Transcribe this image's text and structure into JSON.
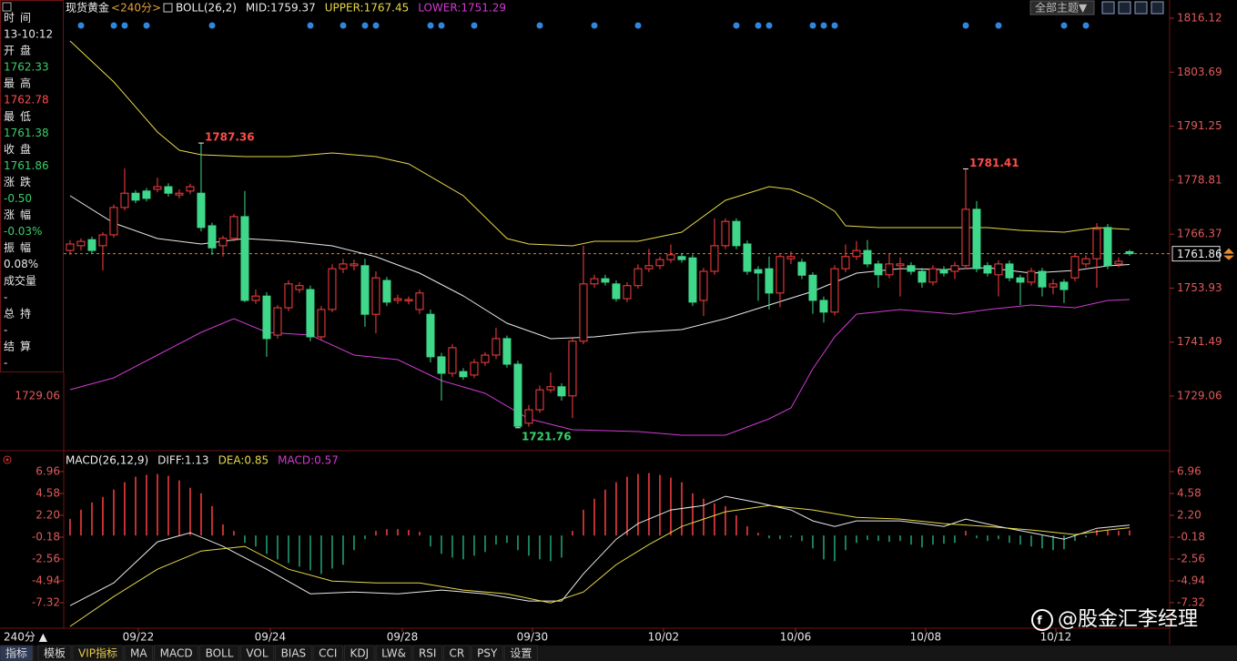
{
  "header": {
    "symbol": "现货黄金",
    "period": "<240分>",
    "theme_button": "全部主题▼"
  },
  "info_panel": [
    {
      "label": "时间",
      "value": "13-10:12",
      "color": "#e8e8e8"
    },
    {
      "label": "开盘",
      "value": "1762.33",
      "color": "#39d06a"
    },
    {
      "label": "最高",
      "value": "1762.78",
      "color": "#ff4b4b"
    },
    {
      "label": "最低",
      "value": "1761.38",
      "color": "#39d06a"
    },
    {
      "label": "收盘",
      "value": "1761.86",
      "color": "#39d06a"
    },
    {
      "label": "涨跌",
      "value": "-0.50",
      "color": "#39d06a"
    },
    {
      "label": "涨幅",
      "value": "-0.03%",
      "color": "#39d06a"
    },
    {
      "label": "振幅",
      "value": "0.08%",
      "color": "#e8e8e8"
    },
    {
      "label": "成交量",
      "value": "-",
      "color": "#e8e8e8"
    },
    {
      "label": "总持",
      "value": "-",
      "color": "#e8e8e8"
    },
    {
      "label": "结算",
      "value": "-",
      "color": "#e8e8e8"
    }
  ],
  "chart_data": [
    {
      "type": "candlestick",
      "indicator": "BOLL(26,2)",
      "up_color": "#ff4040",
      "down_color": "#3fd88a",
      "candles": [
        [
          1762.6,
          1765.0,
          1761.6,
          1764.1
        ],
        [
          1763.7,
          1765.4,
          1762.6,
          1764.7
        ],
        [
          1765.1,
          1765.8,
          1762.0,
          1762.6
        ],
        [
          1763.7,
          1766.8,
          1758.0,
          1766.2
        ],
        [
          1766.2,
          1773.2,
          1765.6,
          1772.5
        ],
        [
          1772.5,
          1781.5,
          1771.8,
          1775.8
        ],
        [
          1775.8,
          1776.5,
          1773.5,
          1774.2
        ],
        [
          1776.3,
          1777.0,
          1773.9,
          1774.6
        ],
        [
          1776.7,
          1779.4,
          1776.0,
          1777.3
        ],
        [
          1777.3,
          1778.1,
          1775.0,
          1775.8
        ],
        [
          1775.4,
          1776.7,
          1774.6,
          1775.8
        ],
        [
          1776.3,
          1778.0,
          1775.6,
          1777.3
        ],
        [
          1775.8,
          1787.36,
          1767.0,
          1767.9
        ],
        [
          1768.3,
          1769.0,
          1761.6,
          1763.2
        ],
        [
          1763.7,
          1766.0,
          1761.2,
          1765.4
        ],
        [
          1765.4,
          1771.0,
          1764.7,
          1770.4
        ],
        [
          1770.4,
          1776.3,
          1750.7,
          1751.1
        ],
        [
          1751.1,
          1753.6,
          1750.3,
          1752.1
        ],
        [
          1752.1,
          1753.0,
          1738.1,
          1742.3
        ],
        [
          1743.1,
          1750.0,
          1742.3,
          1749.4
        ],
        [
          1749.4,
          1755.7,
          1748.6,
          1754.9
        ],
        [
          1753.6,
          1755.3,
          1752.8,
          1754.5
        ],
        [
          1753.6,
          1754.5,
          1741.7,
          1742.7
        ],
        [
          1742.7,
          1749.8,
          1741.9,
          1749.0
        ],
        [
          1749.0,
          1759.4,
          1748.4,
          1758.4
        ],
        [
          1758.4,
          1760.7,
          1757.4,
          1759.5
        ],
        [
          1759.1,
          1760.5,
          1758.0,
          1759.5
        ],
        [
          1759.1,
          1760.7,
          1745.0,
          1747.9
        ],
        [
          1747.9,
          1757.8,
          1743.5,
          1756.3
        ],
        [
          1755.7,
          1756.5,
          1749.8,
          1750.7
        ],
        [
          1751.1,
          1752.4,
          1750.3,
          1751.5
        ],
        [
          1751.0,
          1752.0,
          1750.2,
          1751.3
        ],
        [
          1749.0,
          1753.6,
          1748.0,
          1752.8
        ],
        [
          1747.9,
          1749.0,
          1736.8,
          1738.1
        ],
        [
          1738.1,
          1739.0,
          1728.0,
          1734.3
        ],
        [
          1734.3,
          1741.0,
          1733.5,
          1740.2
        ],
        [
          1734.7,
          1735.5,
          1732.8,
          1733.5
        ],
        [
          1733.9,
          1737.6,
          1733.2,
          1736.8
        ],
        [
          1736.8,
          1739.2,
          1736.0,
          1738.5
        ],
        [
          1738.5,
          1744.8,
          1737.6,
          1742.3
        ],
        [
          1742.3,
          1743.0,
          1735.6,
          1736.4
        ],
        [
          1736.4,
          1737.2,
          1721.76,
          1722.1
        ],
        [
          1722.8,
          1727.0,
          1722.0,
          1725.9
        ],
        [
          1725.9,
          1731.5,
          1725.2,
          1730.5
        ],
        [
          1730.5,
          1734.5,
          1729.8,
          1731.2
        ],
        [
          1731.2,
          1732.0,
          1728.0,
          1729.1
        ],
        [
          1729.1,
          1742.4,
          1724.0,
          1741.7
        ],
        [
          1741.7,
          1763.7,
          1741.0,
          1754.9
        ],
        [
          1754.9,
          1757.0,
          1754.0,
          1756.1
        ],
        [
          1756.1,
          1757.0,
          1754.5,
          1755.3
        ],
        [
          1754.9,
          1755.7,
          1750.8,
          1751.5
        ],
        [
          1751.5,
          1755.3,
          1750.7,
          1754.5
        ],
        [
          1754.5,
          1759.4,
          1753.8,
          1758.4
        ],
        [
          1758.4,
          1763.0,
          1757.6,
          1759.1
        ],
        [
          1759.1,
          1761.2,
          1758.3,
          1760.5
        ],
        [
          1760.5,
          1764.0,
          1759.8,
          1761.6
        ],
        [
          1761.2,
          1762.0,
          1759.8,
          1760.5
        ],
        [
          1760.9,
          1761.6,
          1749.8,
          1750.7
        ],
        [
          1751.1,
          1758.6,
          1747.5,
          1757.8
        ],
        [
          1757.8,
          1770.0,
          1757.0,
          1763.7
        ],
        [
          1763.7,
          1770.0,
          1762.9,
          1769.3
        ],
        [
          1769.3,
          1770.0,
          1762.9,
          1763.7
        ],
        [
          1764.1,
          1764.9,
          1757.0,
          1757.8
        ],
        [
          1758.2,
          1759.0,
          1751.0,
          1757.4
        ],
        [
          1758.4,
          1761.2,
          1749.0,
          1752.8
        ],
        [
          1752.8,
          1762.0,
          1749.5,
          1761.2
        ],
        [
          1760.7,
          1762.4,
          1759.5,
          1761.2
        ],
        [
          1759.9,
          1760.7,
          1756.0,
          1756.9
        ],
        [
          1756.9,
          1757.6,
          1748.0,
          1751.1
        ],
        [
          1751.1,
          1752.0,
          1746.0,
          1748.4
        ],
        [
          1748.4,
          1759.2,
          1747.6,
          1758.4
        ],
        [
          1758.4,
          1764.0,
          1757.6,
          1761.2
        ],
        [
          1761.2,
          1764.8,
          1760.4,
          1762.6
        ],
        [
          1762.6,
          1765.0,
          1758.7,
          1759.5
        ],
        [
          1759.5,
          1760.3,
          1754.0,
          1757.0
        ],
        [
          1757.0,
          1762.0,
          1756.2,
          1759.5
        ],
        [
          1759.1,
          1761.0,
          1752.0,
          1759.5
        ],
        [
          1759.1,
          1759.9,
          1757.0,
          1757.8
        ],
        [
          1757.8,
          1758.6,
          1754.0,
          1755.3
        ],
        [
          1755.3,
          1759.2,
          1754.5,
          1758.4
        ],
        [
          1758.2,
          1759.0,
          1756.6,
          1757.4
        ],
        [
          1757.8,
          1760.0,
          1756.0,
          1759.1
        ],
        [
          1759.1,
          1781.41,
          1758.3,
          1772.1
        ],
        [
          1772.1,
          1774.0,
          1757.6,
          1758.4
        ],
        [
          1759.1,
          1759.9,
          1756.6,
          1757.4
        ],
        [
          1757.0,
          1760.3,
          1752.0,
          1759.5
        ],
        [
          1759.5,
          1760.3,
          1755.5,
          1756.3
        ],
        [
          1756.3,
          1757.0,
          1750.0,
          1755.3
        ],
        [
          1755.3,
          1758.6,
          1754.5,
          1757.8
        ],
        [
          1757.8,
          1758.6,
          1752.0,
          1754.2
        ],
        [
          1754.2,
          1756.0,
          1752.5,
          1754.9
        ],
        [
          1755.3,
          1756.0,
          1750.5,
          1753.6
        ],
        [
          1756.3,
          1762.0,
          1755.5,
          1761.2
        ],
        [
          1759.5,
          1761.5,
          1758.7,
          1760.7
        ],
        [
          1760.7,
          1768.9,
          1754.0,
          1767.5
        ],
        [
          1767.9,
          1768.7,
          1758.3,
          1759.1
        ],
        [
          1759.5,
          1761.0,
          1758.7,
          1760.1
        ],
        [
          1762.33,
          1762.78,
          1761.38,
          1761.86
        ]
      ],
      "series": [
        {
          "name": "MID:1759.37",
          "color": "#e8e8e8",
          "x": [
            0,
            4,
            8,
            12,
            16,
            20,
            24,
            28,
            32,
            36,
            40,
            44,
            48,
            52,
            56,
            60,
            64,
            68,
            72,
            76,
            80,
            84,
            88,
            92,
            95,
            97
          ],
          "values": [
            1775.21,
            1768.92,
            1765.35,
            1764.09,
            1765.35,
            1764.72,
            1763.67,
            1761.16,
            1757.38,
            1752.14,
            1745.84,
            1742.28,
            1742.69,
            1743.74,
            1744.37,
            1746.89,
            1750.04,
            1753.18,
            1757.38,
            1758.43,
            1758.22,
            1758.64,
            1757.38,
            1758.01,
            1759.06,
            1759.37
          ]
        },
        {
          "name": "UPPER:1767.45",
          "color": "#e6d84a",
          "x": [
            0,
            4,
            8,
            10,
            12,
            16,
            20,
            24,
            28,
            31,
            36,
            40,
            42,
            46,
            48,
            52,
            56,
            60,
            64,
            66,
            68,
            70,
            71,
            74,
            78,
            84,
            87,
            91,
            94,
            97
          ],
          "values": [
            1810.88,
            1801.44,
            1789.9,
            1785.7,
            1784.65,
            1784.24,
            1784.24,
            1785.07,
            1784.24,
            1782.56,
            1775.21,
            1765.35,
            1764.09,
            1763.67,
            1764.72,
            1764.72,
            1766.82,
            1774.16,
            1777.31,
            1776.68,
            1774.58,
            1771.65,
            1768.29,
            1767.87,
            1767.87,
            1767.87,
            1767.24,
            1766.82,
            1767.87,
            1767.45
          ]
        },
        {
          "name": "LOWER:1751.29",
          "color": "#d23ad2",
          "x": [
            0,
            4,
            8,
            12,
            15,
            18,
            22,
            26,
            30,
            34,
            38,
            42,
            46,
            52,
            56,
            60,
            64,
            66,
            68,
            70,
            72,
            76,
            81,
            84,
            88,
            92,
            95,
            97
          ],
          "values": [
            1730.53,
            1733.25,
            1738.5,
            1743.74,
            1746.89,
            1743.74,
            1743.11,
            1738.5,
            1737.45,
            1732.62,
            1729.69,
            1723.81,
            1721.3,
            1720.88,
            1720.04,
            1720.04,
            1723.81,
            1726.33,
            1735.35,
            1742.69,
            1747.94,
            1748.99,
            1747.94,
            1748.99,
            1750.04,
            1749.41,
            1751.09,
            1751.29
          ]
        }
      ],
      "xlim": [
        -0.58,
        100.67
      ],
      "ylim": [
        1716.68,
        1817.8
      ],
      "yticks": [
        1816.12,
        1803.69,
        1791.25,
        1778.81,
        1766.37,
        1753.93,
        1741.49,
        1729.06
      ],
      "annotations": [
        {
          "index": 12,
          "value": 1787.36
        },
        {
          "index": 82,
          "value": 1781.41
        },
        {
          "index": 41,
          "value": 1721.76
        }
      ],
      "current_price": 1761.86
    },
    {
      "type": "macd",
      "title": "MACD(26,12,9)",
      "histogram_name": "MACD:0.57",
      "histogram_color": "#d23ad2",
      "up_color": "#ff4040",
      "down_color": "#22a877",
      "histogram": [
        1.8,
        2.8,
        3.6,
        4.2,
        5.0,
        5.8,
        6.4,
        6.6,
        6.7,
        6.5,
        6.0,
        5.2,
        4.6,
        3.2,
        1.2,
        0.5,
        -0.8,
        -1.2,
        -2.0,
        -2.6,
        -3.0,
        -3.4,
        -3.8,
        -4.2,
        -3.6,
        -3.2,
        -1.6,
        -0.4,
        0.5,
        0.7,
        0.7,
        0.6,
        0.4,
        -1.2,
        -2.0,
        -2.4,
        -2.6,
        -2.2,
        -1.8,
        -1.0,
        -0.8,
        -1.6,
        -2.2,
        -2.6,
        -2.8,
        -2.4,
        0.5,
        2.8,
        4.0,
        5.0,
        5.8,
        6.4,
        6.7,
        6.8,
        6.6,
        6.3,
        5.8,
        4.6,
        4.0,
        3.5,
        3.2,
        2.2,
        1.0,
        0.3,
        -0.3,
        -0.4,
        -0.2,
        -0.6,
        -1.4,
        -2.6,
        -2.8,
        -1.6,
        -0.8,
        -0.5,
        -0.6,
        -0.7,
        -0.6,
        -1.0,
        -1.3,
        -1.0,
        -0.9,
        -0.8,
        0.5,
        -0.3,
        -0.6,
        -0.4,
        -0.8,
        -1.0,
        -1.2,
        -1.4,
        -1.6,
        -1.5,
        -0.6,
        -0.2,
        0.6,
        0.6,
        0.5,
        0.57
      ],
      "series": [
        {
          "name": "DIFF:1.13",
          "color": "#e8e8e8",
          "x": [
            0,
            4,
            8,
            11,
            14,
            18,
            22,
            26,
            30,
            34,
            38,
            42,
            45,
            47,
            50,
            52,
            55,
            58,
            60,
            63,
            66,
            68,
            70,
            72,
            76,
            80,
            82,
            85,
            88,
            91,
            94,
            97
          ],
          "values": [
            -7.64,
            -5.16,
            -0.69,
            0.3,
            -1.19,
            -3.67,
            -6.35,
            -6.15,
            -6.35,
            -5.95,
            -6.35,
            -7.14,
            -7.14,
            -4.17,
            -0.4,
            1.29,
            2.78,
            3.27,
            4.27,
            3.57,
            2.78,
            1.59,
            0.99,
            1.59,
            1.59,
            0.99,
            1.79,
            0.99,
            0.3,
            -0.4,
            0.79,
            1.13
          ]
        },
        {
          "name": "DEA:0.85",
          "color": "#e6d84a",
          "x": [
            0,
            4,
            8,
            12,
            16,
            20,
            24,
            28,
            32,
            36,
            40,
            44,
            47,
            50,
            53,
            56,
            60,
            64,
            68,
            72,
            76,
            80,
            84,
            88,
            92,
            95,
            97
          ],
          "values": [
            -9.9,
            -6.65,
            -3.67,
            -1.69,
            -1.19,
            -3.67,
            -4.96,
            -5.16,
            -5.16,
            -5.95,
            -6.35,
            -7.34,
            -6.15,
            -3.17,
            -0.99,
            0.99,
            2.58,
            3.27,
            2.78,
            1.98,
            1.79,
            1.29,
            0.99,
            0.6,
            0.1,
            0.6,
            0.85
          ]
        }
      ],
      "xlim": [
        -0.58,
        100.67
      ],
      "ylim": [
        -10.1,
        7.55
      ],
      "yticks": [
        6.96,
        4.58,
        {
          "value": 2.2,
          "label": "2.20"
        },
        -0.18,
        -2.56,
        -4.94,
        -7.32
      ],
      "xticks": [
        {
          "value": 6.25,
          "label": "09/22"
        },
        {
          "value": 18.33,
          "label": "09/24"
        },
        {
          "value": 30.42,
          "label": "09/28"
        },
        {
          "value": 42.33,
          "label": "09/30"
        },
        {
          "value": 54.33,
          "label": "10/02"
        },
        {
          "value": 66.42,
          "label": "10/06"
        },
        {
          "value": 78.33,
          "label": "10/08"
        },
        {
          "value": 90.25,
          "label": "10/12"
        }
      ]
    }
  ],
  "period_button": "240分 ▲",
  "tabs": [
    "指标",
    "模板",
    "VIP指标",
    "MA",
    "MACD",
    "BOLL",
    "VOL",
    "BIAS",
    "CCI",
    "KDJ",
    "LW&",
    "RSI",
    "CR",
    "PSY",
    "设置"
  ],
  "watermark": "@股金汇李经理"
}
